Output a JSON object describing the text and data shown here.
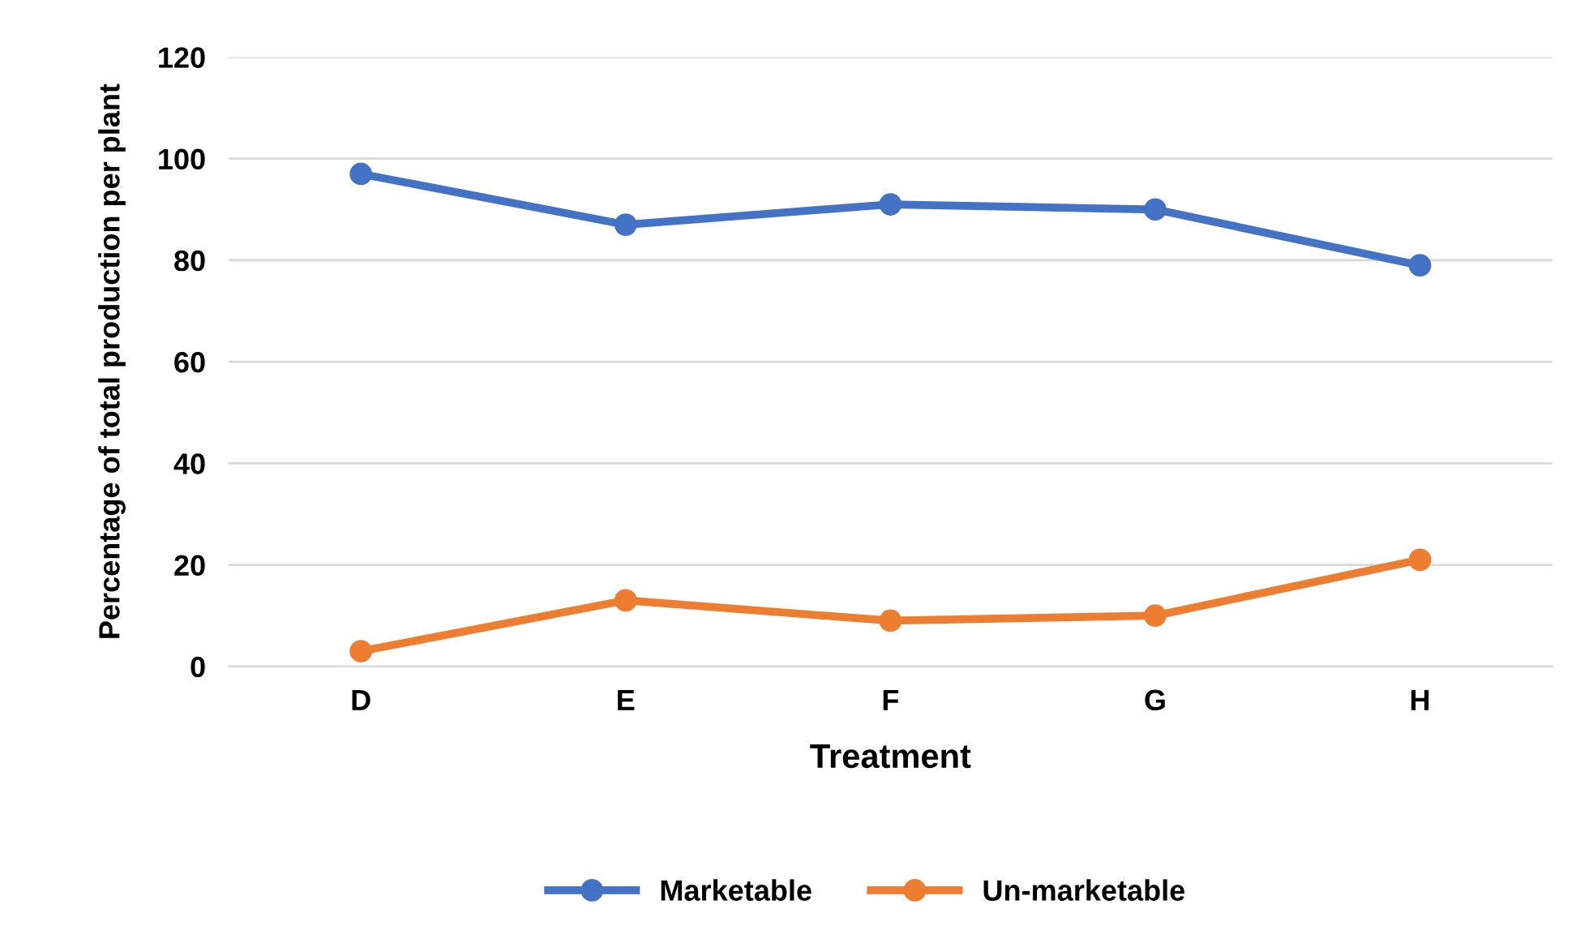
{
  "chart_data": {
    "type": "line",
    "xlabel": "Treatment",
    "ylabel": "Percentage of total production per plant",
    "categories": [
      "D",
      "E",
      "F",
      "G",
      "H"
    ],
    "series": [
      {
        "name": "Marketable",
        "color": "#4472c4",
        "values": [
          97,
          87,
          91,
          90,
          79
        ]
      },
      {
        "name": "Un-marketable",
        "color": "#ed7d31",
        "values": [
          3,
          13,
          9,
          10,
          21
        ]
      }
    ],
    "ylim": [
      0,
      120
    ],
    "yticks": [
      0,
      20,
      40,
      60,
      80,
      100,
      120
    ],
    "grid": "y",
    "legend": "bottom",
    "marker": "circle",
    "line_style": "solid"
  }
}
